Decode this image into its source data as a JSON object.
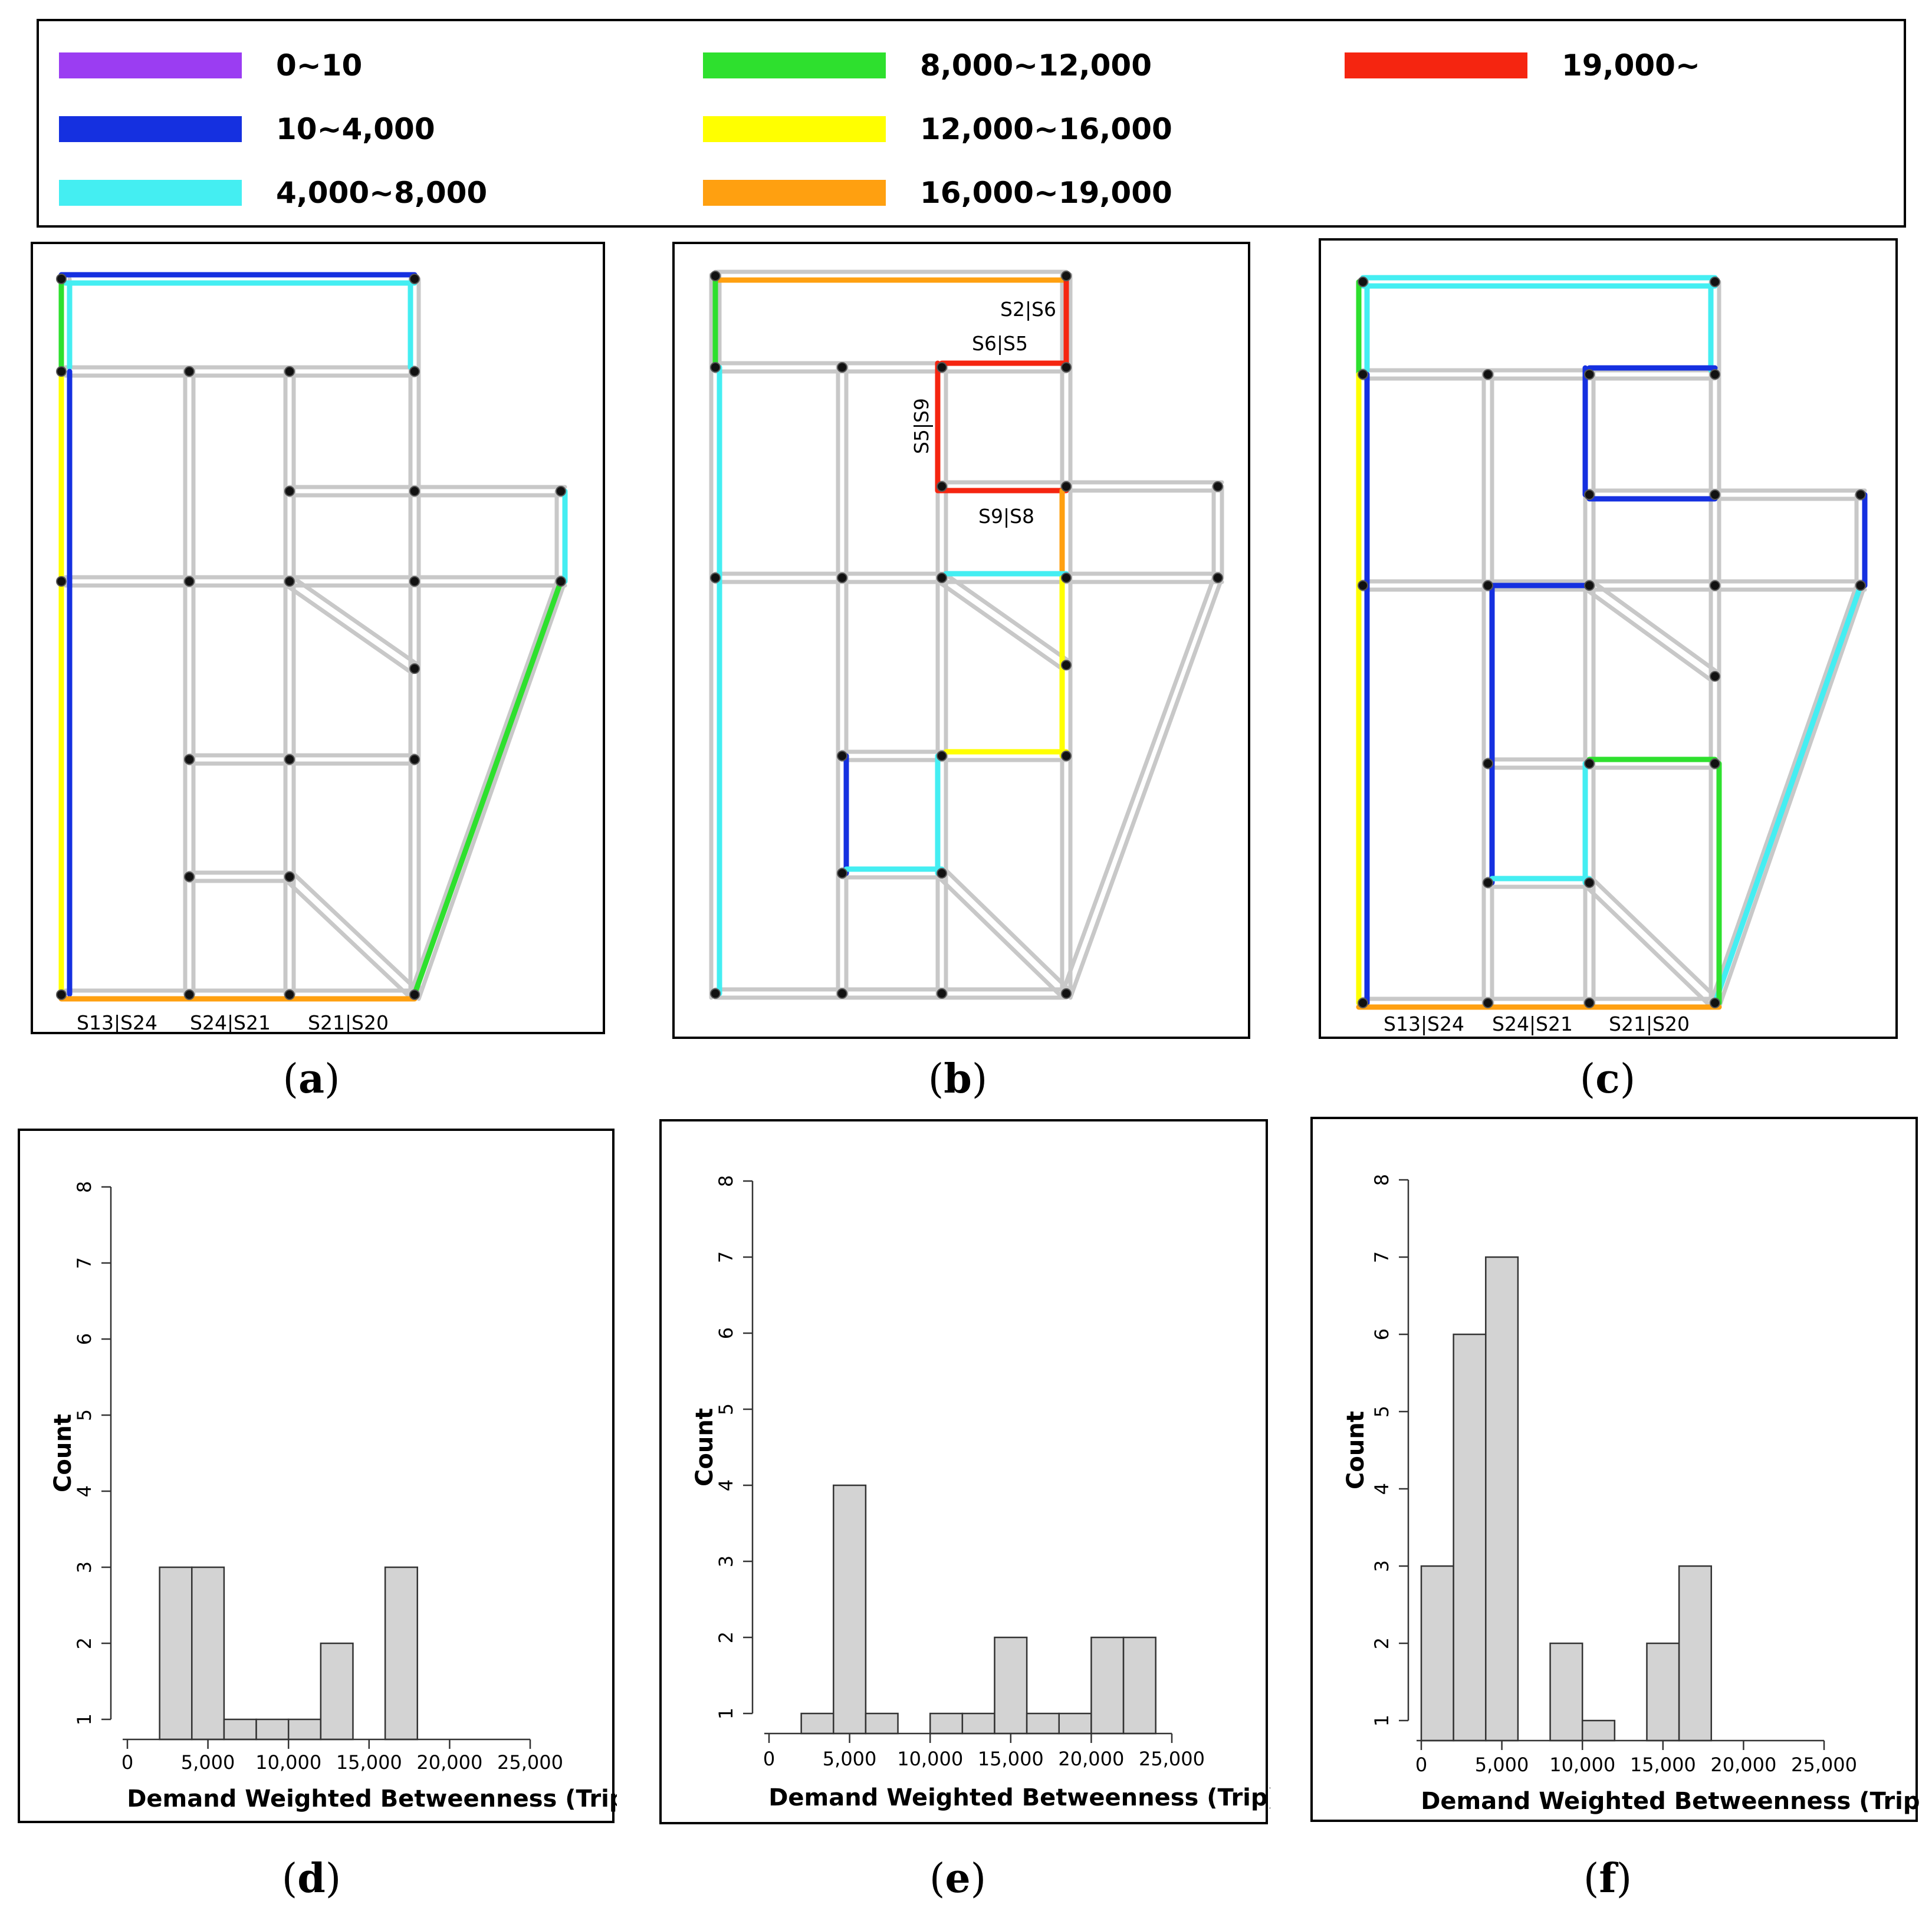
{
  "legend": {
    "items": [
      {
        "label": "0~10",
        "color": "#9b3df2"
      },
      {
        "label": "10~4,000",
        "color": "#1530e0"
      },
      {
        "label": "4,000~8,000",
        "color": "#44eef2"
      },
      {
        "label": "8,000~12,000",
        "color": "#2ee02e"
      },
      {
        "label": "12,000~16,000",
        "color": "#ffff00"
      },
      {
        "label": "16,000~19,000",
        "color": "#ffa010"
      },
      {
        "label": "19,000~",
        "color": "#f52510"
      }
    ]
  },
  "panels": {
    "a": {
      "caption": "a",
      "labels": [
        "S13|S24",
        "S24|S21",
        "S21|S20"
      ]
    },
    "b": {
      "caption": "b",
      "labels": [
        "S2|S6",
        "S6|S5",
        "S5|S9",
        "S9|S8"
      ]
    },
    "c": {
      "caption": "c",
      "labels": [
        "S13|S24",
        "S24|S21",
        "S21|S20"
      ]
    },
    "d": {
      "caption": "d"
    },
    "e": {
      "caption": "e"
    },
    "f": {
      "caption": "f"
    }
  },
  "chart_data": [
    {
      "type": "bar",
      "panel": "d",
      "title": "",
      "xlabel": "Demand Weighted Betweenness (Trip)",
      "ylabel": "Count",
      "xlim": [
        0,
        25000
      ],
      "ylim": [
        1,
        8
      ],
      "xticks": [
        "0",
        "5,000",
        "10,000",
        "15,000",
        "20,000",
        "25,000"
      ],
      "yticks": [
        "1",
        "2",
        "3",
        "4",
        "5",
        "6",
        "7",
        "8"
      ],
      "bin_width": 2000,
      "bins": [
        {
          "start": 2000,
          "end": 4000,
          "count": 3
        },
        {
          "start": 4000,
          "end": 6000,
          "count": 3
        },
        {
          "start": 6000,
          "end": 8000,
          "count": 1
        },
        {
          "start": 8000,
          "end": 10000,
          "count": 1
        },
        {
          "start": 10000,
          "end": 12000,
          "count": 1
        },
        {
          "start": 12000,
          "end": 14000,
          "count": 2
        },
        {
          "start": 16000,
          "end": 18000,
          "count": 3
        }
      ]
    },
    {
      "type": "bar",
      "panel": "e",
      "title": "",
      "xlabel": "Demand Weighted Betweenness (Trip)",
      "ylabel": "Count",
      "xlim": [
        0,
        25000
      ],
      "ylim": [
        1,
        8
      ],
      "xticks": [
        "0",
        "5,000",
        "10,000",
        "15,000",
        "20,000",
        "25,000"
      ],
      "yticks": [
        "1",
        "2",
        "3",
        "4",
        "5",
        "6",
        "7",
        "8"
      ],
      "bin_width": 2000,
      "bins": [
        {
          "start": 2000,
          "end": 4000,
          "count": 1
        },
        {
          "start": 4000,
          "end": 6000,
          "count": 4
        },
        {
          "start": 6000,
          "end": 8000,
          "count": 1
        },
        {
          "start": 10000,
          "end": 12000,
          "count": 1
        },
        {
          "start": 12000,
          "end": 14000,
          "count": 1
        },
        {
          "start": 14000,
          "end": 16000,
          "count": 2
        },
        {
          "start": 16000,
          "end": 18000,
          "count": 1
        },
        {
          "start": 18000,
          "end": 20000,
          "count": 1
        },
        {
          "start": 20000,
          "end": 22000,
          "count": 2
        },
        {
          "start": 22000,
          "end": 24000,
          "count": 2
        }
      ]
    },
    {
      "type": "bar",
      "panel": "f",
      "title": "",
      "xlabel": "Demand Weighted Betweenness (Trip)",
      "ylabel": "Count",
      "xlim": [
        0,
        25000
      ],
      "ylim": [
        1,
        8
      ],
      "xticks": [
        "0",
        "5,000",
        "10,000",
        "15,000",
        "20,000",
        "25,000"
      ],
      "yticks": [
        "1",
        "2",
        "3",
        "4",
        "5",
        "6",
        "7",
        "8"
      ],
      "bin_width": 2000,
      "bins": [
        {
          "start": 0,
          "end": 2000,
          "count": 3
        },
        {
          "start": 2000,
          "end": 4000,
          "count": 6
        },
        {
          "start": 4000,
          "end": 6000,
          "count": 7
        },
        {
          "start": 8000,
          "end": 10000,
          "count": 2
        },
        {
          "start": 10000,
          "end": 12000,
          "count": 1
        },
        {
          "start": 14000,
          "end": 16000,
          "count": 2
        },
        {
          "start": 16000,
          "end": 18000,
          "count": 3
        }
      ]
    }
  ]
}
